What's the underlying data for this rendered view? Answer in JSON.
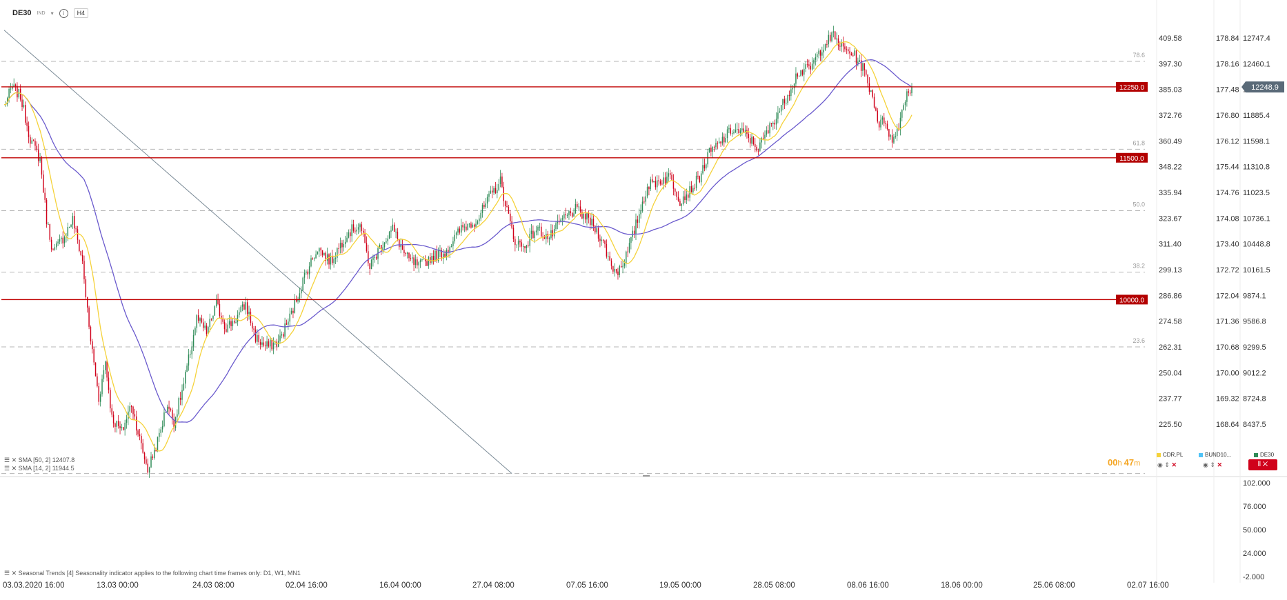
{
  "header": {
    "symbol": "DE30",
    "instrument_class": "IND",
    "timeframe": "H4"
  },
  "colors": {
    "bull": "#2e8b57",
    "bear": "#d0021b",
    "sma50": "#6a5acd",
    "sma14": "#f5d23a",
    "level": "#c00000",
    "fib": "#b5b5b5",
    "trend": "#7a8a96",
    "badge_bg": "#b30000",
    "badge_fg": "#ffffff"
  },
  "chart_data": {
    "type": "candlestick",
    "symbol": "DE30",
    "timeframe": "H4",
    "y_range": [
      8150,
      12950
    ],
    "x_tick_labels": [
      "03.03.2020 16:00",
      "13.03 00:00",
      "24.03 08:00",
      "02.04 16:00",
      "16.04 00:00",
      "27.04 08:00",
      "07.05 16:00",
      "19.05 00:00",
      "28.05 08:00",
      "08.06 16:00",
      "18.06 00:00",
      "25.06 08:00",
      "02.07 16:00"
    ],
    "axis_primary": [
      "12747.4",
      "12460.1",
      "12172.8",
      "11885.4",
      "11598.1",
      "11310.8",
      "11023.5",
      "10736.1",
      "10448.8",
      "10161.5",
      "9874.1",
      "9586.8",
      "9299.5",
      "9012.2",
      "8724.8",
      "8437.5"
    ],
    "axis_secondary": [
      "178.84",
      "178.16",
      "177.48",
      "176.80",
      "176.12",
      "175.44",
      "174.76",
      "174.08",
      "173.40",
      "172.72",
      "172.04",
      "171.36",
      "170.68",
      "170.00",
      "169.32",
      "168.64"
    ],
    "axis_tertiary": [
      "409.58",
      "397.30",
      "385.03",
      "372.76",
      "360.49",
      "348.22",
      "335.94",
      "323.67",
      "311.40",
      "299.13",
      "286.86",
      "274.58",
      "262.31",
      "250.04",
      "237.77",
      "225.50"
    ],
    "last_price": "12248.9",
    "horizontal_levels": [
      {
        "label": "12250.0",
        "value": 12250
      },
      {
        "label": "11500.0",
        "value": 11500
      },
      {
        "label": "10000.0",
        "value": 10000
      }
    ],
    "fibonacci": [
      {
        "label": "78.6",
        "value": 12520
      },
      {
        "label": "61.8",
        "value": 11590
      },
      {
        "label": "50.0",
        "value": 10940
      },
      {
        "label": "38.2",
        "value": 10290
      },
      {
        "label": "23.6",
        "value": 9500
      },
      {
        "label": "",
        "value": 8160
      }
    ],
    "trendline": {
      "from": {
        "candle": 0,
        "value": 12850
      },
      "to": {
        "candle": 311,
        "value": 8160
      }
    },
    "price_path": [
      {
        "candle": 0,
        "value": 12050
      },
      {
        "candle": 5,
        "value": 12250
      },
      {
        "candle": 10,
        "value": 12150
      },
      {
        "candle": 16,
        "value": 11700
      },
      {
        "candle": 22,
        "value": 11480
      },
      {
        "candle": 26,
        "value": 10850
      },
      {
        "candle": 30,
        "value": 10500
      },
      {
        "candle": 36,
        "value": 10650
      },
      {
        "candle": 42,
        "value": 10850
      },
      {
        "candle": 48,
        "value": 10400
      },
      {
        "candle": 52,
        "value": 9700
      },
      {
        "candle": 58,
        "value": 8950
      },
      {
        "candle": 62,
        "value": 9350
      },
      {
        "candle": 66,
        "value": 8750
      },
      {
        "candle": 72,
        "value": 8600
      },
      {
        "candle": 78,
        "value": 8900
      },
      {
        "candle": 84,
        "value": 8450
      },
      {
        "candle": 88,
        "value": 8200
      },
      {
        "candle": 94,
        "value": 8500
      },
      {
        "candle": 100,
        "value": 8900
      },
      {
        "candle": 104,
        "value": 8700
      },
      {
        "candle": 110,
        "value": 9100
      },
      {
        "candle": 118,
        "value": 9800
      },
      {
        "candle": 124,
        "value": 9650
      },
      {
        "candle": 130,
        "value": 9950
      },
      {
        "candle": 136,
        "value": 9700
      },
      {
        "candle": 142,
        "value": 9800
      },
      {
        "candle": 148,
        "value": 9950
      },
      {
        "candle": 154,
        "value": 9600
      },
      {
        "candle": 160,
        "value": 9500
      },
      {
        "candle": 168,
        "value": 9550
      },
      {
        "candle": 176,
        "value": 9850
      },
      {
        "candle": 184,
        "value": 10250
      },
      {
        "candle": 192,
        "value": 10550
      },
      {
        "candle": 200,
        "value": 10400
      },
      {
        "candle": 210,
        "value": 10700
      },
      {
        "candle": 218,
        "value": 10800
      },
      {
        "candle": 224,
        "value": 10350
      },
      {
        "candle": 230,
        "value": 10550
      },
      {
        "candle": 238,
        "value": 10750
      },
      {
        "candle": 246,
        "value": 10450
      },
      {
        "candle": 254,
        "value": 10350
      },
      {
        "candle": 262,
        "value": 10450
      },
      {
        "candle": 270,
        "value": 10500
      },
      {
        "candle": 280,
        "value": 10750
      },
      {
        "candle": 290,
        "value": 10850
      },
      {
        "candle": 298,
        "value": 11100
      },
      {
        "candle": 304,
        "value": 11250
      },
      {
        "candle": 308,
        "value": 10950
      },
      {
        "candle": 312,
        "value": 10650
      },
      {
        "candle": 318,
        "value": 10550
      },
      {
        "candle": 326,
        "value": 10750
      },
      {
        "candle": 334,
        "value": 10650
      },
      {
        "candle": 342,
        "value": 10850
      },
      {
        "candle": 350,
        "value": 10950
      },
      {
        "candle": 358,
        "value": 10850
      },
      {
        "candle": 366,
        "value": 10650
      },
      {
        "candle": 372,
        "value": 10350
      },
      {
        "candle": 376,
        "value": 10300
      },
      {
        "candle": 382,
        "value": 10500
      },
      {
        "candle": 388,
        "value": 10850
      },
      {
        "candle": 394,
        "value": 11200
      },
      {
        "candle": 400,
        "value": 11250
      },
      {
        "candle": 408,
        "value": 11300
      },
      {
        "candle": 414,
        "value": 11050
      },
      {
        "candle": 420,
        "value": 11150
      },
      {
        "candle": 426,
        "value": 11300
      },
      {
        "candle": 432,
        "value": 11550
      },
      {
        "candle": 438,
        "value": 11650
      },
      {
        "candle": 446,
        "value": 11800
      },
      {
        "candle": 454,
        "value": 11750
      },
      {
        "candle": 462,
        "value": 11600
      },
      {
        "candle": 470,
        "value": 11850
      },
      {
        "candle": 478,
        "value": 12100
      },
      {
        "candle": 486,
        "value": 12400
      },
      {
        "candle": 494,
        "value": 12450
      },
      {
        "candle": 502,
        "value": 12700
      },
      {
        "candle": 508,
        "value": 12790
      },
      {
        "candle": 514,
        "value": 12650
      },
      {
        "candle": 520,
        "value": 12600
      },
      {
        "candle": 526,
        "value": 12450
      },
      {
        "candle": 532,
        "value": 12150
      },
      {
        "candle": 536,
        "value": 11850
      },
      {
        "candle": 540,
        "value": 11900
      },
      {
        "candle": 544,
        "value": 11650
      },
      {
        "candle": 548,
        "value": 11850
      },
      {
        "candle": 552,
        "value": 12150
      },
      {
        "candle": 556,
        "value": 12250
      }
    ],
    "indicators": [
      {
        "name": "SMA [50, 2]",
        "value": "12407.8",
        "color": "#6a5acd"
      },
      {
        "name": "SMA [14, 2]",
        "value": "11944.5",
        "color": "#f5d23a"
      }
    ],
    "sub_panel": {
      "title": "Seasonal Trends [4] Seasonality indicator applies to the following chart time frames only: D1, W1, MN1",
      "axis": [
        "102.000",
        "76.000",
        "50.000",
        "24.000",
        "-2.000"
      ]
    },
    "countdown": {
      "hours": "00",
      "minutes": "47"
    },
    "overlays": [
      {
        "symbol": "CDR.PL",
        "color": "#f5d23a"
      },
      {
        "symbol": "BUND10...",
        "color": "#4fc3f7"
      },
      {
        "symbol": "DE30",
        "color": "#2e8b57"
      }
    ]
  }
}
